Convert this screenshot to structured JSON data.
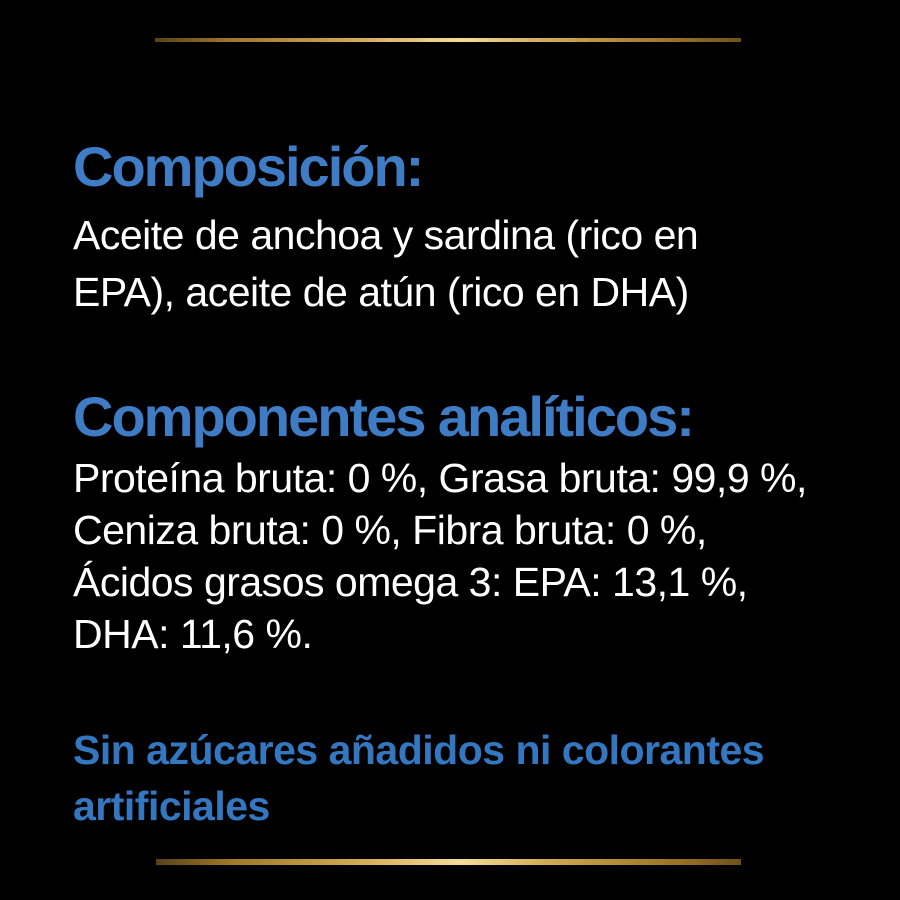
{
  "page": {
    "background_color": "#000000",
    "heading_color": "#3e7dc5",
    "body_color": "#ffffff",
    "claim_color": "#3377c1",
    "gold_line_colors": [
      "#57421a",
      "#9c7526",
      "#f3dc9a",
      "#9c7526",
      "#6e521a"
    ]
  },
  "sections": [
    {
      "heading": "Composición:",
      "lines": [
        "Aceite de anchoa y sardina (rico en",
        "EPA), aceite de atún (rico en DHA)"
      ]
    },
    {
      "heading": "Componentes analíticos:",
      "lines": [
        "Proteína bruta: 0 %, Grasa bruta: 99,9 %,",
        "Ceniza bruta: 0 %, Fibra bruta: 0 %,",
        "Ácidos grasos omega 3: EPA: 13,1 %,",
        "DHA: 11,6 %."
      ]
    }
  ],
  "claim": {
    "lines": [
      "Sin azúcares añadidos ni colorantes",
      "artificiales"
    ]
  }
}
